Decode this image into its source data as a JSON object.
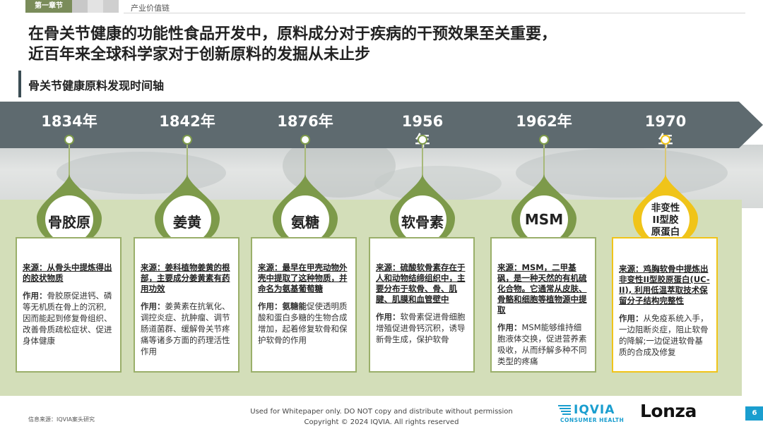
{
  "header": {
    "chapter": "第一章节",
    "section": "产业价值链",
    "block_colors": [
      "#c8c8c8",
      "#dedede",
      "#cfcfcf"
    ]
  },
  "headline": {
    "line1": "在骨关节健康的功能性食品开发中，原料成分对于疾病的干预效果至关重要，",
    "line2": "近百年来全球科学家对于创新原料的发掘从未止步"
  },
  "subhead": "骨关节健康原料发现时间轴",
  "colors": {
    "arrow": "#5e6a6f",
    "green": "#7d9a4a",
    "gold": "#f0c419",
    "bg_green": "#d3deb9",
    "iqvia_blue": "#1a9ecf"
  },
  "timeline": [
    {
      "year": "1834年",
      "name": "骨胶原",
      "source": "来源：从骨头中提炼得出的胶状物质",
      "use_key": "作用：",
      "use_text": "骨胶原促进钙、磷等无机质在骨上的沉积,因而能起到修复骨组织、改善骨质疏松症状、促进身体健康",
      "style": "green"
    },
    {
      "year": "1842年",
      "name": "姜黄",
      "source": "来源：姜科植物姜黄的根部，主要成分姜黄素有药用功效",
      "use_key": "作用：",
      "use_text": "姜黄素在抗氧化、调控炎症、抗肿瘤、调节肠道菌群、缓解骨关节疼痛等诸多方面的药理活性作用",
      "style": "green"
    },
    {
      "year": "1876年",
      "name": "氨糖",
      "source": "来源：最早在甲壳动物外壳中提取了这种物质，并命名为氨基葡萄糖",
      "use_key": "作用：氨糖能",
      "use_text": "促使透明质酸和蛋白多糖的生物合成增加，起着修复软骨和保护软骨的作用",
      "style": "green"
    },
    {
      "year": "1956年",
      "name": "软骨素",
      "source": "来源：硫酸软骨素存在于人和动物结缔组织中，主要分布于软骨、骨、肌腱、肌膜和血管壁中",
      "use_key": "作用：",
      "use_text": "软骨素促进骨细胞增殖促进骨钙沉积，诱导新骨生成，保护软骨",
      "style": "green"
    },
    {
      "year": "1962年",
      "name": "MSM",
      "source": "来源：MSM，二甲基砜，是一种天然的有机硫化合物。它通常从皮肤、骨骼和细胞等植物源中提取",
      "use_key": "作用：",
      "use_text": "MSM能够维持细胞液体交换，促进营养素吸收，从而纾解多种不同类型的疼痛",
      "style": "green"
    },
    {
      "year": "1970年",
      "name": "非变性II型胶原蛋白",
      "source": "来源：鸡胸软骨中提炼出非变性II型胶原蛋白(UC-II), 利用低温萃取技术保留分子结构完整性",
      "use_key": "作用：",
      "use_text": "从免疫系统入手，一边阻断炎症，阻止软骨的降解;一边促进软骨基质的合成及修复",
      "style": "gold"
    }
  ],
  "footer": {
    "source_note": "信息来源：IQVIA案头研究",
    "disclaimer_line1": "Used for Whitepaper only. DO NOT copy and distribute without permission",
    "disclaimer_line2": "Copyright © 2024 IQVIA. All rights reserved",
    "iqvia_word": "IQVIA",
    "iqvia_sub": "CONSUMER HEALTH",
    "lonza": "Lonza",
    "page": "6"
  }
}
